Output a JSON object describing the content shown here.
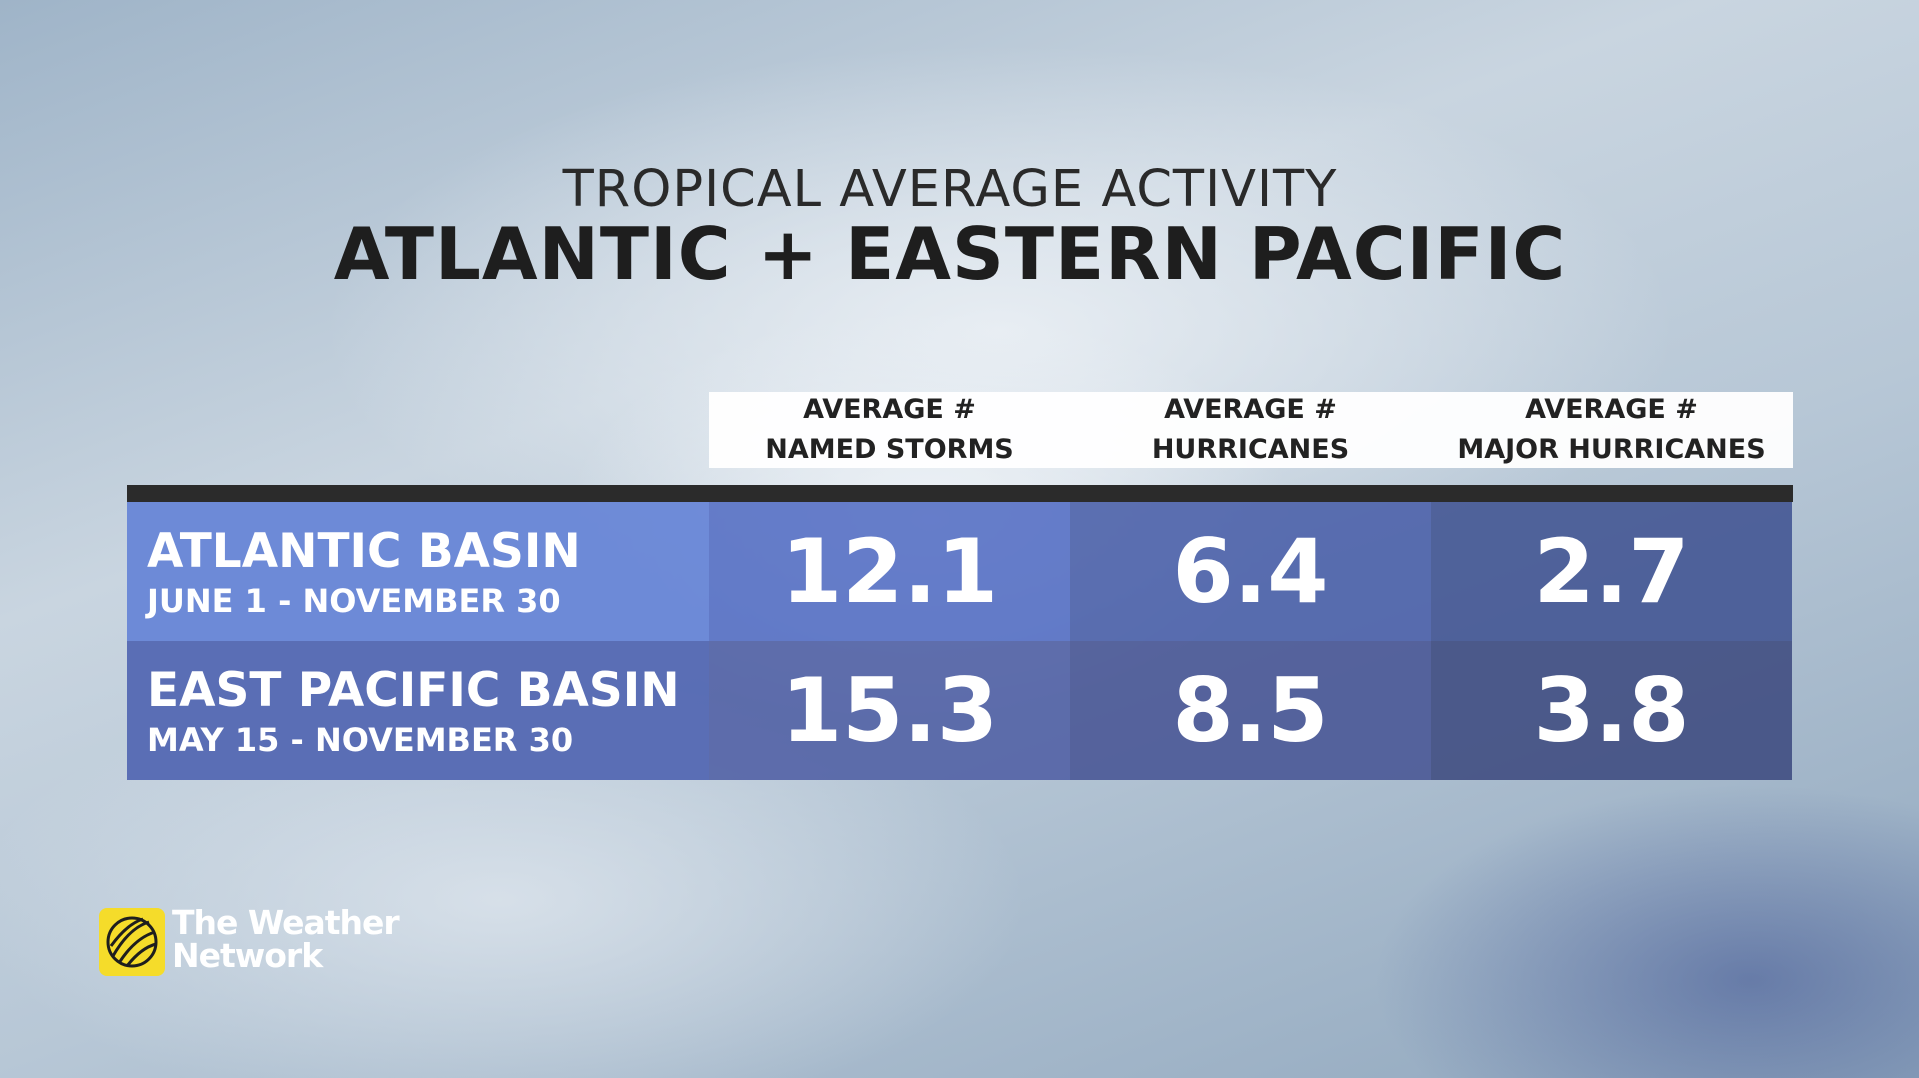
{
  "header": {
    "subtitle": "TROPICAL AVERAGE ACTIVITY",
    "title": "ATLANTIC + EASTERN PACIFIC"
  },
  "table": {
    "columns": [
      [
        "AVERAGE #",
        "NAMED STORMS"
      ],
      [
        "AVERAGE #",
        "HURRICANES"
      ],
      [
        "AVERAGE #",
        "MAJOR HURRICANES"
      ]
    ],
    "rows": [
      {
        "label": "ATLANTIC BASIN",
        "dates": "JUNE 1 - NOVEMBER 30",
        "values": [
          "12.1",
          "6.4",
          "2.7"
        ]
      },
      {
        "label": "EAST PACIFIC BASIN",
        "dates": "MAY 15 - NOVEMBER 30",
        "values": [
          "15.3",
          "8.5",
          "3.8"
        ]
      }
    ]
  },
  "logo": {
    "line1": "The Weather",
    "line2": "Network"
  }
}
